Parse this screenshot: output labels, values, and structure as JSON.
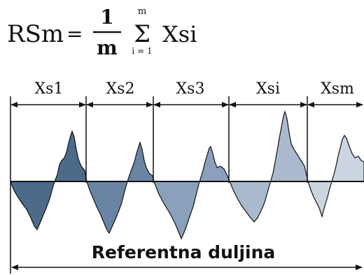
{
  "formula": {
    "lhs": "RSm",
    "equals": "=",
    "numerator": "1",
    "denominator": "m",
    "sum_symbol": "Σ",
    "sum_upper": "m",
    "sum_lower": "i = 1",
    "term": "Xsi"
  },
  "segments": [
    {
      "label": "Xs1"
    },
    {
      "label": "Xs2"
    },
    {
      "label": "Xs3"
    },
    {
      "label": "Xsi"
    },
    {
      "label": "Xsm"
    }
  ],
  "reference_length_label": "Referentna duljina",
  "colors": {
    "line": "#111111",
    "segment_fills": [
      "#4d6a8b",
      "#6a84a4",
      "#8aa0bb",
      "#aab9cd",
      "#cbd5e2"
    ]
  }
}
